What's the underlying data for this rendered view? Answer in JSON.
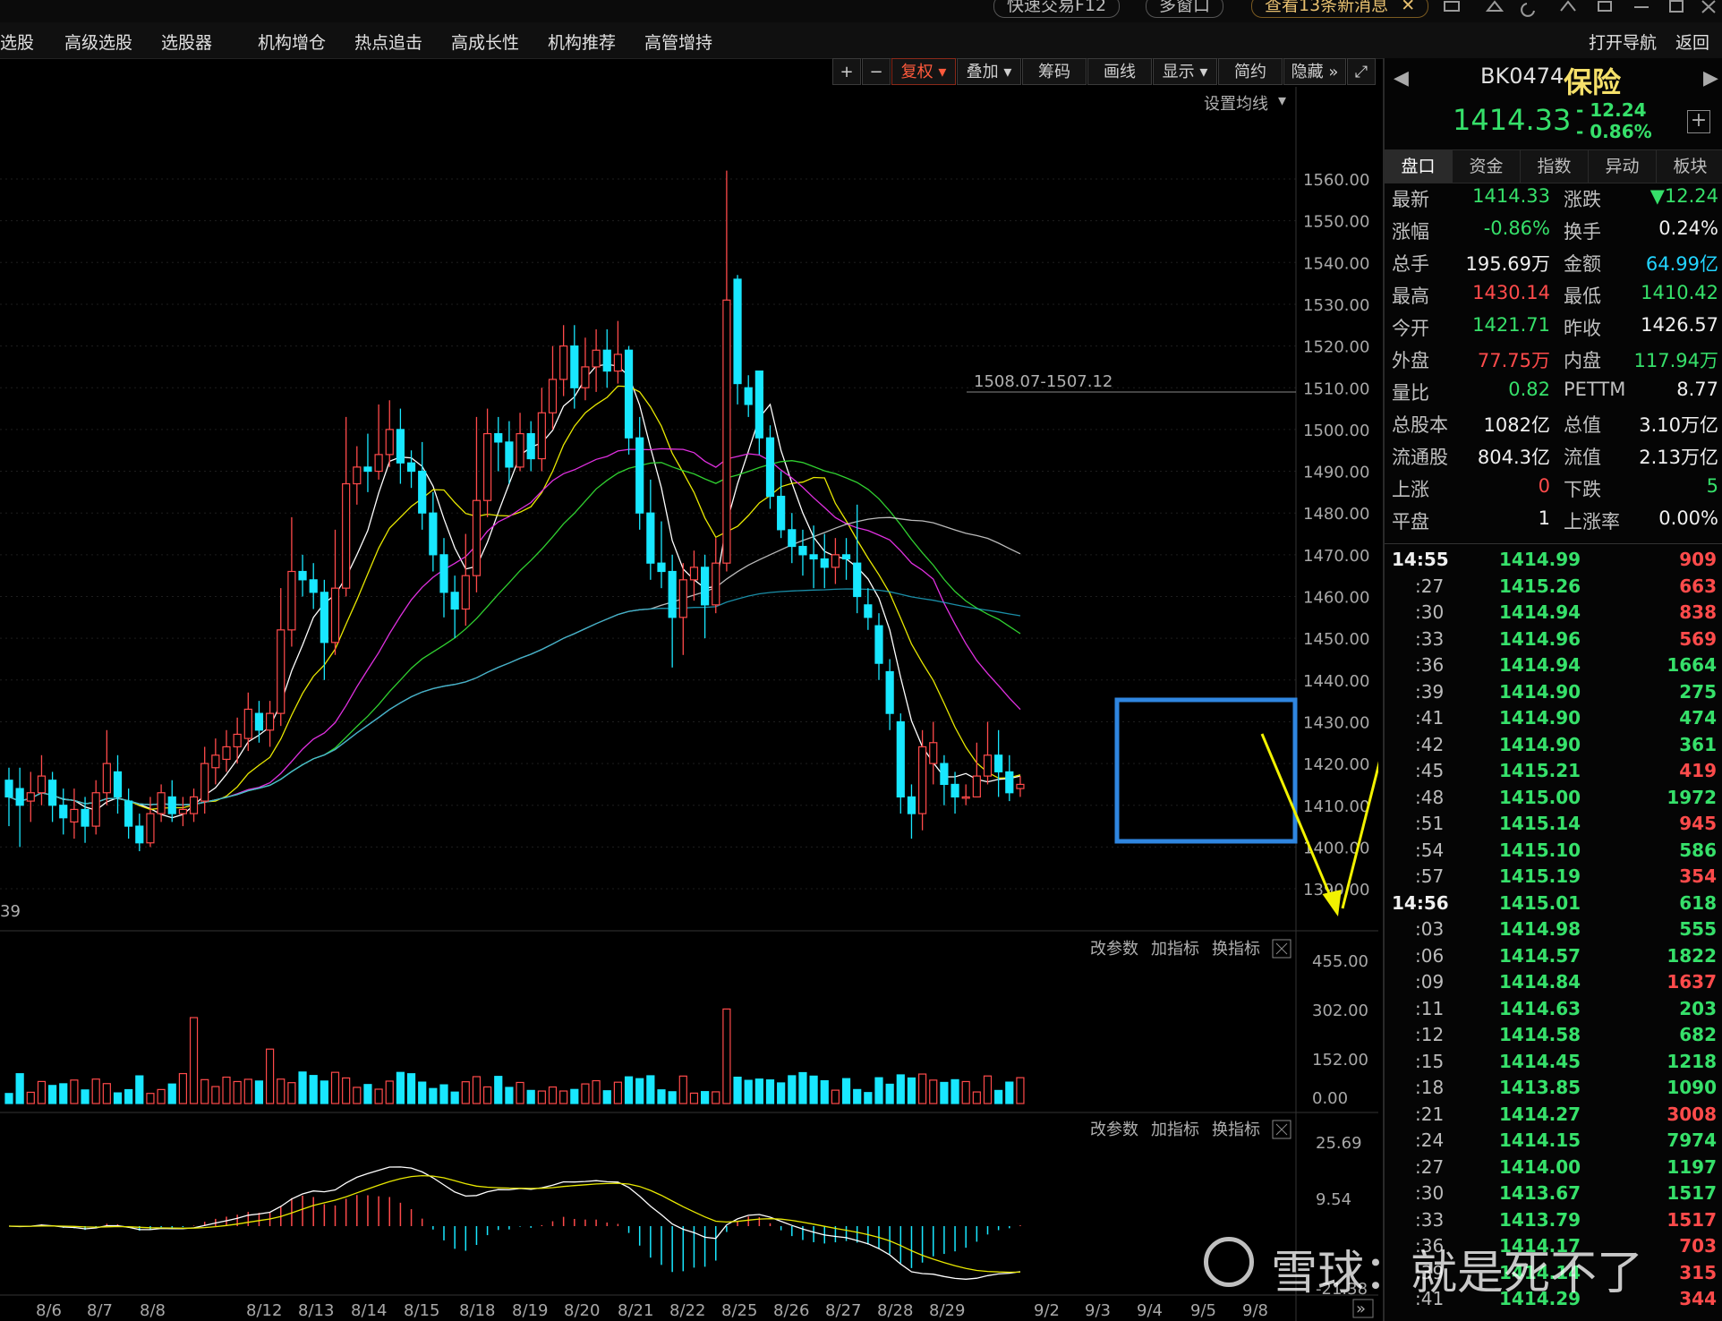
{
  "top_buttons": {
    "quick_trade": "快速交易F12",
    "multi_window": "多窗口",
    "messages": "查看13条新消息",
    "close": "✕"
  },
  "menu": {
    "items": [
      "选股",
      "高级选股",
      "选股器",
      "机构增仓",
      "热点追击",
      "高成长性",
      "机构推荐",
      "高管增持"
    ],
    "right": [
      "打开导航",
      "返回"
    ]
  },
  "toolbar": {
    "plus": "+",
    "minus": "−",
    "fuquan": "复权",
    "overlay": "叠加",
    "chips": "筹码",
    "draw": "画线",
    "display": "显示",
    "simple": "简约",
    "hide": "隐藏",
    "expand": "⤢",
    "ma_setting": "设置均线"
  },
  "indicator_tools": {
    "change_params": "改参数",
    "add_indicator": "加指标",
    "switch_indicator": "换指标"
  },
  "annotation": {
    "range_label": "1508.07-1507.12",
    "left_value": "39"
  },
  "quote": {
    "code": "BK0474",
    "name": "保险",
    "price": "1414.33",
    "change": "- 12.24",
    "change_pct": "- 0.86%",
    "tabs": [
      "盘口",
      "资金",
      "指数",
      "异动",
      "板块"
    ],
    "rows": [
      [
        {
          "k": "最新",
          "v": "1414.33",
          "c": "g"
        },
        {
          "k": "涨跌",
          "v": "▼12.24",
          "c": "g"
        }
      ],
      [
        {
          "k": "涨幅",
          "v": "-0.86%",
          "c": "g"
        },
        {
          "k": "换手",
          "v": "0.24%",
          "c": "w"
        }
      ],
      [
        {
          "k": "总手",
          "v": "195.69万",
          "c": "w"
        },
        {
          "k": "金额",
          "v": "64.99亿",
          "c": "cy"
        }
      ],
      [
        {
          "k": "最高",
          "v": "1430.14",
          "c": "r"
        },
        {
          "k": "最低",
          "v": "1410.42",
          "c": "g"
        }
      ],
      [
        {
          "k": "今开",
          "v": "1421.71",
          "c": "g"
        },
        {
          "k": "昨收",
          "v": "1426.57",
          "c": "w"
        }
      ],
      [
        {
          "k": "外盘",
          "v": "77.75万",
          "c": "r"
        },
        {
          "k": "内盘",
          "v": "117.94万",
          "c": "g"
        }
      ],
      [
        {
          "k": "量比",
          "v": "0.82",
          "c": "g"
        },
        {
          "k": "PETTM",
          "v": "8.77",
          "c": "w"
        }
      ],
      [
        {
          "k": "总股本",
          "v": "1082亿",
          "c": "w"
        },
        {
          "k": "总值",
          "v": "3.10万亿",
          "c": "w"
        }
      ],
      [
        {
          "k": "流通股",
          "v": "804.3亿",
          "c": "w"
        },
        {
          "k": "流值",
          "v": "2.13万亿",
          "c": "w"
        }
      ],
      [
        {
          "k": "上涨",
          "v": "0",
          "c": "r"
        },
        {
          "k": "下跌",
          "v": "5",
          "c": "g"
        }
      ],
      [
        {
          "k": "平盘",
          "v": "1",
          "c": "w"
        },
        {
          "k": "上涨率",
          "v": "0.00%",
          "c": "w"
        }
      ]
    ],
    "ticks": [
      {
        "t": "14:55",
        "p": "1414.99",
        "v": "909",
        "vc": "r",
        "hl": true
      },
      {
        "t": ":27",
        "p": "1415.26",
        "v": "663",
        "vc": "r"
      },
      {
        "t": ":30",
        "p": "1414.94",
        "v": "838",
        "vc": "r"
      },
      {
        "t": ":33",
        "p": "1414.96",
        "v": "569",
        "vc": "r"
      },
      {
        "t": ":36",
        "p": "1414.94",
        "v": "1664",
        "vc": "g"
      },
      {
        "t": ":39",
        "p": "1414.90",
        "v": "275",
        "vc": "g"
      },
      {
        "t": ":41",
        "p": "1414.90",
        "v": "474",
        "vc": "g"
      },
      {
        "t": ":42",
        "p": "1414.90",
        "v": "361",
        "vc": "g"
      },
      {
        "t": ":45",
        "p": "1415.21",
        "v": "419",
        "vc": "r"
      },
      {
        "t": ":48",
        "p": "1415.00",
        "v": "1972",
        "vc": "g"
      },
      {
        "t": ":51",
        "p": "1415.14",
        "v": "945",
        "vc": "r"
      },
      {
        "t": ":54",
        "p": "1415.10",
        "v": "586",
        "vc": "g"
      },
      {
        "t": ":57",
        "p": "1415.19",
        "v": "354",
        "vc": "r"
      },
      {
        "t": "14:56",
        "p": "1415.01",
        "v": "618",
        "vc": "g",
        "hl": true
      },
      {
        "t": ":03",
        "p": "1414.98",
        "v": "555",
        "vc": "g"
      },
      {
        "t": ":06",
        "p": "1414.57",
        "v": "1822",
        "vc": "g"
      },
      {
        "t": ":09",
        "p": "1414.84",
        "v": "1637",
        "vc": "r"
      },
      {
        "t": ":11",
        "p": "1414.63",
        "v": "203",
        "vc": "g"
      },
      {
        "t": ":12",
        "p": "1414.58",
        "v": "682",
        "vc": "g"
      },
      {
        "t": ":15",
        "p": "1414.45",
        "v": "1218",
        "vc": "g"
      },
      {
        "t": ":18",
        "p": "1413.85",
        "v": "1090",
        "vc": "g"
      },
      {
        "t": ":21",
        "p": "1414.27",
        "v": "3008",
        "vc": "r"
      },
      {
        "t": ":24",
        "p": "1414.15",
        "v": "7974",
        "vc": "g"
      },
      {
        "t": ":27",
        "p": "1414.00",
        "v": "1197",
        "vc": "g"
      },
      {
        "t": ":30",
        "p": "1413.67",
        "v": "1517",
        "vc": "g"
      },
      {
        "t": ":33",
        "p": "1413.79",
        "v": "1517",
        "vc": "r"
      },
      {
        "t": ":36",
        "p": "1414.17",
        "v": "703",
        "vc": "r"
      },
      {
        "t": ":39",
        "p": "1414.14",
        "v": "315",
        "vc": "r"
      },
      {
        "t": ":41",
        "p": "1414.29",
        "v": "344",
        "vc": "r"
      }
    ]
  },
  "watermark": "雪球：就是死不了",
  "chart_data": {
    "type": "candlestick",
    "price_axis": {
      "ticks": [
        "1560.00",
        "1550.00",
        "1540.00",
        "1530.00",
        "1520.00",
        "1510.00",
        "1500.00",
        "1490.00",
        "1480.00",
        "1470.00",
        "1460.00",
        "1450.00",
        "1440.00",
        "1430.00",
        "1420.00",
        "1410.00",
        "1400.00",
        "1390.00"
      ],
      "ylim": [
        1390,
        1560
      ]
    },
    "volume_axis": {
      "ticks": [
        "455.00",
        "302.00",
        "152.00",
        "0.00"
      ],
      "ylim": [
        0,
        455
      ]
    },
    "macd_axis": {
      "ticks": [
        "25.69",
        "9.54",
        "-21.38"
      ]
    },
    "x_labels": [
      "8/6",
      "8/7",
      "8/8",
      "8/12",
      "8/13",
      "8/14",
      "8/15",
      "8/18",
      "8/19",
      "8/20",
      "8/21",
      "8/22",
      "8/25",
      "8/26",
      "8/27",
      "8/28",
      "8/29",
      "9/2",
      "9/3",
      "9/4",
      "9/5",
      "9/8"
    ],
    "candles": [
      [
        1416,
        1412,
        1419,
        1405
      ],
      [
        1414,
        1410,
        1419,
        1400
      ],
      [
        1411,
        1413,
        1418,
        1406
      ],
      [
        1413,
        1417,
        1422,
        1410
      ],
      [
        1416,
        1410,
        1418,
        1406
      ],
      [
        1410,
        1407,
        1414,
        1403
      ],
      [
        1406,
        1409,
        1414,
        1402
      ],
      [
        1409,
        1405,
        1412,
        1401
      ],
      [
        1405,
        1413,
        1416,
        1403
      ],
      [
        1413,
        1420,
        1428,
        1410
      ],
      [
        1418,
        1412,
        1422,
        1408
      ],
      [
        1411,
        1405,
        1414,
        1402
      ],
      [
        1405,
        1401,
        1408,
        1399
      ],
      [
        1401,
        1408,
        1412,
        1400
      ],
      [
        1408,
        1413,
        1415,
        1406
      ],
      [
        1412,
        1408,
        1416,
        1406
      ],
      [
        1408,
        1409,
        1412,
        1405
      ],
      [
        1408,
        1412,
        1414,
        1406
      ],
      [
        1411,
        1420,
        1424,
        1408
      ],
      [
        1419,
        1422,
        1426,
        1415
      ],
      [
        1421,
        1424,
        1428,
        1418
      ],
      [
        1424,
        1427,
        1431,
        1420
      ],
      [
        1426,
        1433,
        1437,
        1423
      ],
      [
        1432,
        1428,
        1435,
        1425
      ],
      [
        1428,
        1432,
        1435,
        1424
      ],
      [
        1432,
        1452,
        1462,
        1429
      ],
      [
        1452,
        1466,
        1479,
        1448
      ],
      [
        1466,
        1464,
        1470,
        1460
      ],
      [
        1464,
        1461,
        1468,
        1457
      ],
      [
        1461,
        1449,
        1464,
        1440
      ],
      [
        1449,
        1462,
        1476,
        1446
      ],
      [
        1462,
        1487,
        1503,
        1460
      ],
      [
        1487,
        1491,
        1496,
        1482
      ],
      [
        1491,
        1490,
        1499,
        1485
      ],
      [
        1490,
        1494,
        1506,
        1488
      ],
      [
        1494,
        1500,
        1507,
        1491
      ],
      [
        1500,
        1492,
        1505,
        1487
      ],
      [
        1492,
        1490,
        1495,
        1486
      ],
      [
        1490,
        1480,
        1497,
        1476
      ],
      [
        1480,
        1470,
        1485,
        1466
      ],
      [
        1470,
        1461,
        1474,
        1455
      ],
      [
        1461,
        1457,
        1465,
        1450
      ],
      [
        1457,
        1465,
        1475,
        1453
      ],
      [
        1465,
        1483,
        1503,
        1461
      ],
      [
        1483,
        1499,
        1505,
        1479
      ],
      [
        1499,
        1497,
        1503,
        1490
      ],
      [
        1497,
        1491,
        1502,
        1487
      ],
      [
        1491,
        1499,
        1504,
        1490
      ],
      [
        1499,
        1493,
        1502,
        1490
      ],
      [
        1493,
        1504,
        1510,
        1490
      ],
      [
        1504,
        1512,
        1520,
        1500
      ],
      [
        1512,
        1520,
        1525,
        1508
      ],
      [
        1520,
        1510,
        1525,
        1505
      ],
      [
        1510,
        1515,
        1522,
        1507
      ],
      [
        1515,
        1519,
        1524,
        1509
      ],
      [
        1519,
        1514,
        1524,
        1510
      ],
      [
        1514,
        1518,
        1526,
        1511
      ],
      [
        1519,
        1498,
        1520,
        1494
      ],
      [
        1498,
        1480,
        1503,
        1476
      ],
      [
        1480,
        1468,
        1488,
        1464
      ],
      [
        1468,
        1466,
        1478,
        1462
      ],
      [
        1466,
        1455,
        1470,
        1443
      ],
      [
        1455,
        1464,
        1468,
        1446
      ],
      [
        1464,
        1467,
        1471,
        1459
      ],
      [
        1467,
        1458,
        1470,
        1450
      ],
      [
        1458,
        1468,
        1474,
        1456
      ],
      [
        1468,
        1531,
        1562,
        1466
      ],
      [
        1536,
        1511,
        1537,
        1506
      ],
      [
        1510,
        1506,
        1513,
        1503
      ],
      [
        1514,
        1498,
        1514,
        1494
      ],
      [
        1498,
        1484,
        1501,
        1481
      ],
      [
        1484,
        1476,
        1490,
        1474
      ],
      [
        1476,
        1472,
        1480,
        1468
      ],
      [
        1472,
        1470,
        1476,
        1465
      ],
      [
        1470,
        1469,
        1477,
        1462
      ],
      [
        1469,
        1467,
        1475,
        1462
      ],
      [
        1467,
        1470,
        1474,
        1463
      ],
      [
        1470,
        1469,
        1474,
        1464
      ],
      [
        1468,
        1460,
        1482,
        1456
      ],
      [
        1458,
        1455,
        1462,
        1452
      ],
      [
        1453,
        1444,
        1456,
        1440
      ],
      [
        1442,
        1432,
        1445,
        1428
      ],
      [
        1430,
        1412,
        1432,
        1408
      ],
      [
        1412,
        1408,
        1415,
        1402
      ],
      [
        1408,
        1424,
        1428,
        1404
      ],
      [
        1420,
        1425,
        1430,
        1415
      ],
      [
        1420,
        1415,
        1422,
        1410
      ],
      [
        1415,
        1412,
        1418,
        1408
      ],
      [
        1412,
        1412,
        1415,
        1410
      ],
      [
        1412,
        1417,
        1425,
        1412
      ],
      [
        1417,
        1422,
        1430,
        1415
      ],
      [
        1422,
        1418,
        1428,
        1412
      ],
      [
        1418,
        1413,
        1422,
        1411
      ],
      [
        1414,
        1415,
        1417,
        1412
      ]
    ],
    "volume_bars": "one per candle; mostly 30-110, spikes ~300 (8/12) and ~330 (8/28)",
    "box_region": {
      "x_from": "9/3",
      "x_to": "9/8",
      "y_range": [
        1400,
        1430
      ]
    }
  }
}
